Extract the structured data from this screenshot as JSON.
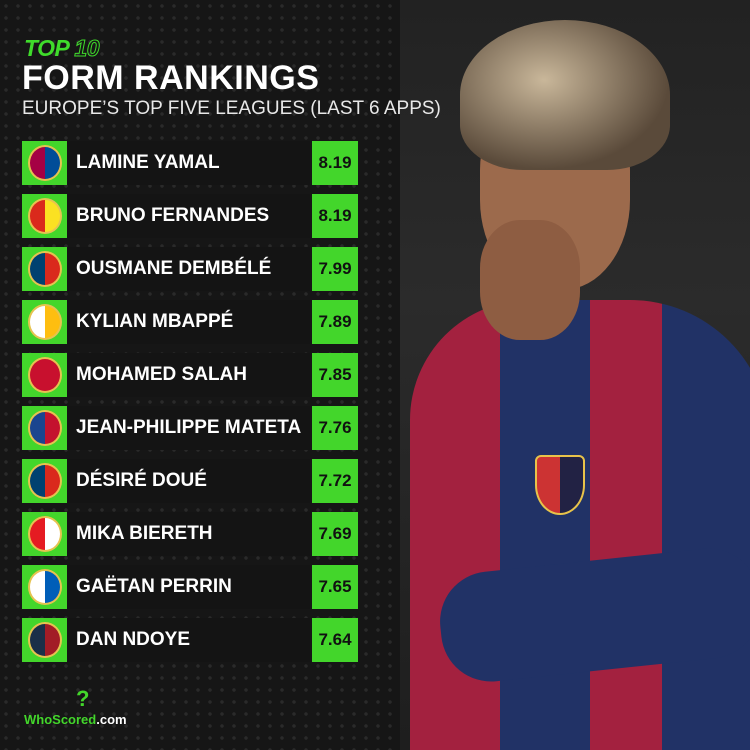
{
  "header": {
    "top_label": "TOP",
    "top_number": "10",
    "title": "FORM RANKINGS",
    "subtitle": "EUROPE’S TOP FIVE LEAGUES (LAST 6 APPS)"
  },
  "colors": {
    "accent": "#43d62b",
    "row_bg": "#141414"
  },
  "rankings": [
    {
      "name": "LAMINE YAMAL",
      "rating": "8.19",
      "club_icon": "barcelona-crest",
      "badge": [
        "#a50044",
        "#004d98"
      ]
    },
    {
      "name": "BRUNO FERNANDES",
      "rating": "8.19",
      "club_icon": "manchester-united-crest",
      "badge": [
        "#da291c",
        "#fbe122"
      ]
    },
    {
      "name": "OUSMANE DEMBÉLÉ",
      "rating": "7.99",
      "club_icon": "psg-crest",
      "badge": [
        "#004170",
        "#da291c"
      ]
    },
    {
      "name": "KYLIAN MBAPPÉ",
      "rating": "7.89",
      "club_icon": "real-madrid-crest",
      "badge": [
        "#ffffff",
        "#febe10"
      ]
    },
    {
      "name": "MOHAMED SALAH",
      "rating": "7.85",
      "club_icon": "liverpool-crest",
      "badge": [
        "#c8102e",
        "#c8102e"
      ]
    },
    {
      "name": "JEAN-PHILIPPE MATETA",
      "rating": "7.76",
      "club_icon": "crystal-palace-crest",
      "badge": [
        "#1b458f",
        "#c4122e"
      ]
    },
    {
      "name": "DÉSIRÉ DOUÉ",
      "rating": "7.72",
      "club_icon": "psg-crest",
      "badge": [
        "#004170",
        "#da291c"
      ]
    },
    {
      "name": "MIKA BIERETH",
      "rating": "7.69",
      "club_icon": "monaco-crest",
      "badge": [
        "#e51b22",
        "#ffffff"
      ]
    },
    {
      "name": "GAËTAN PERRIN",
      "rating": "7.65",
      "club_icon": "auxerre-crest",
      "badge": [
        "#ffffff",
        "#005eb8"
      ]
    },
    {
      "name": "DAN NDOYE",
      "rating": "7.64",
      "club_icon": "bologna-crest",
      "badge": [
        "#1a2f48",
        "#a21c26"
      ]
    }
  ],
  "footer": {
    "brand_a": "WhoScored",
    "brand_b": ".com"
  }
}
